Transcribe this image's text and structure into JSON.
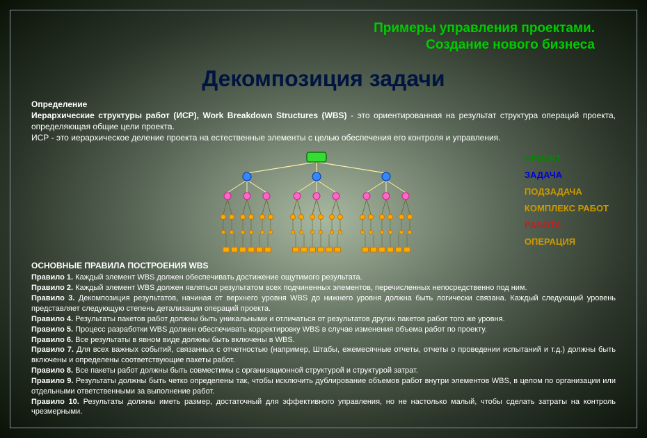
{
  "header": {
    "line1": "Примеры управления проектами.",
    "line2": "Создание нового бизнеса"
  },
  "main_title": "Декомпозиция задачи",
  "definition": {
    "label": "Определение",
    "bold_lead": "Иерархические структуры работ (ИСР), Work Breakdown Structures (WBS)",
    "text_after_bold": " - это ориентированная на результат структура операций проекта, определяющая общие цели проекта.",
    "line2": "ИСР - это иерархическое деление проекта на естественные элементы с целью обеспечения его контроля и управления."
  },
  "legend": {
    "items": [
      {
        "label": "ПРОЕКТ",
        "color": "#008800"
      },
      {
        "label": "ЗАДАЧА",
        "color": "#0000dd"
      },
      {
        "label": "ПОДЗАДАЧА",
        "color": "#cc9900"
      },
      {
        "label": "КОМПЛЕКС РАБОТ",
        "color": "#cc9900"
      },
      {
        "label": "РАБОТА",
        "color": "#bb2222"
      },
      {
        "label": "ОПЕРАЦИЯ",
        "color": "#cc9900"
      }
    ]
  },
  "diagram": {
    "colors": {
      "project_fill": "#33dd33",
      "project_stroke": "#006600",
      "task_fill": "#3388ff",
      "task_stroke": "#0033aa",
      "subtask_fill": "#ff66cc",
      "subtask_stroke": "#cc2288",
      "work_fill": "#ffaa00",
      "work_stroke": "#cc7700",
      "line": "#ffeeaa",
      "line_dark": "#666633"
    }
  },
  "rules": {
    "title": "ОСНОВНЫЕ ПРАВИЛА ПОСТРОЕНИЯ WBS",
    "items": [
      {
        "bold": "Правило 1.",
        "text": " Каждый элемент WBS должен обеспечивать достижение ощутимого результата."
      },
      {
        "bold": "Правило 2.",
        "text": " Каждый элемент WBS должен являться результатом всех подчиненных элементов, перечисленных непосредственно под ним."
      },
      {
        "bold": "Правило 3.",
        "text": " Декомпозиция результатов, начиная от верхнего уровня WBS до нижнего уровня должна быть логически связана. Каждый следующий уровень представляет следующую степень детализации операций проекта."
      },
      {
        "bold": "Правило 4.",
        "text": " Результаты пакетов работ должны быть уникальными и отличаться от результатов других пакетов работ того же уровня."
      },
      {
        "bold": "Правило 5.",
        "text": " Процесс разработки WBS должен обеспечивать корректировку WBS в случае изменения объема работ по проекту."
      },
      {
        "bold": "Правило 6.",
        "text": " Все результаты в явном виде должны быть включены в WBS."
      },
      {
        "bold": "Правило 7.",
        "text": " Для всех важных событий, связанных с отчетностью (например, Штабы, ежемесячные отчеты, отчеты о проведении испытаний и т.д.) должны быть включены и определены соответствующие пакеты работ."
      },
      {
        "bold": "Правило 8.",
        "text": " Все пакеты работ должны быть совместимы с организационной структурой и структурой затрат."
      },
      {
        "bold": "Правило 9.",
        "text": " Результаты должны быть четко определены так, чтобы исключить дублирование объемов работ внутри элементов WBS, в целом по организации или отдельными ответственными за выполнение работ."
      },
      {
        "bold": "Правило 10.",
        "text": " Результаты должны иметь размер, достаточный для эффективного управления, но не настолько малый, чтобы сделать затраты на контроль чрезмерными."
      }
    ]
  }
}
